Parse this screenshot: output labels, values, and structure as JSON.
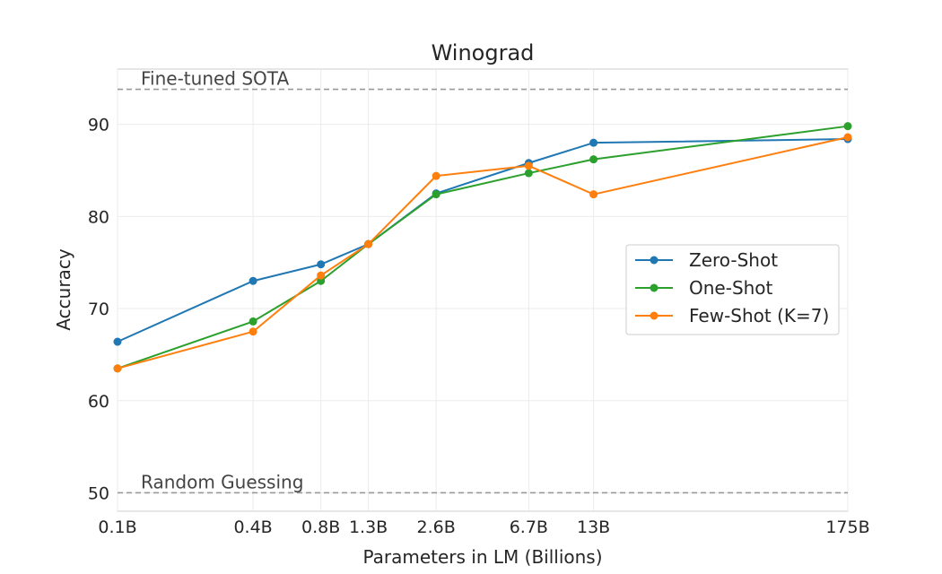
{
  "chart_data": {
    "type": "line",
    "title": "Winograd",
    "xlabel": "Parameters in LM (Billions)",
    "ylabel": "Accuracy",
    "x_scale": "log",
    "x": [
      0.1,
      0.4,
      0.8,
      1.3,
      2.6,
      6.7,
      13,
      175
    ],
    "x_tick_labels": [
      "0.1B",
      "0.4B",
      "0.8B",
      "1.3B",
      "2.6B",
      "6.7B",
      "13B",
      "175B"
    ],
    "ylim": [
      48,
      96
    ],
    "y_ticks": [
      50,
      60,
      70,
      80,
      90
    ],
    "grid": true,
    "legend": "center-right",
    "series": [
      {
        "name": "Zero-Shot",
        "color": "#1f77b4",
        "values": [
          66.4,
          73.0,
          74.8,
          77.0,
          82.5,
          85.8,
          88.0,
          88.4
        ]
      },
      {
        "name": "One-Shot",
        "color": "#2ca02c",
        "values": [
          63.5,
          68.6,
          73.0,
          77.0,
          82.4,
          84.7,
          86.2,
          89.8
        ]
      },
      {
        "name": "Few-Shot (K=7)",
        "color": "#ff7f0e",
        "values": [
          63.5,
          67.5,
          73.6,
          77.0,
          84.4,
          85.5,
          82.4,
          88.6
        ]
      }
    ],
    "reference_lines": [
      {
        "label": "Fine-tuned SOTA",
        "value": 93.8,
        "color": "#999999"
      },
      {
        "label": "Random Guessing",
        "value": 50,
        "color": "#999999"
      }
    ]
  }
}
